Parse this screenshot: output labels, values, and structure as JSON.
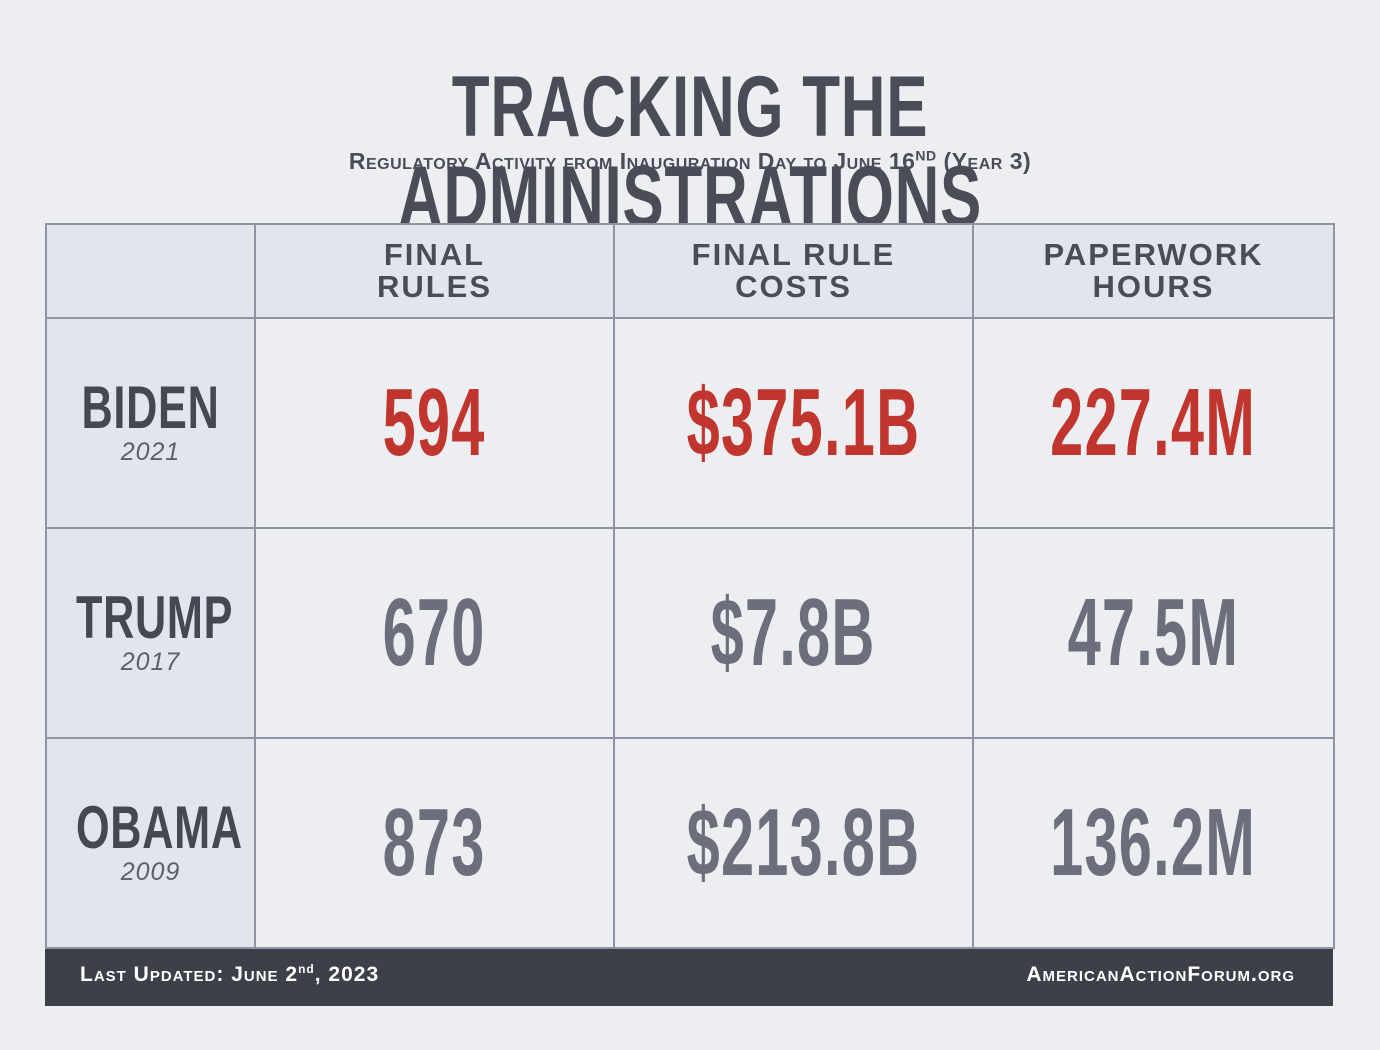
{
  "header": {
    "title": "TRACKING THE ADMINISTRATIONS",
    "subtitle_main": "Regulatory Activity from Inauguration Day to June 16",
    "subtitle_sup": "ND",
    "subtitle_tail": " (Year 3)"
  },
  "table": {
    "columns": [
      "FINAL RULES",
      "FINAL RULE COSTS",
      "PAPERWORK HOURS"
    ],
    "rows": [
      {
        "name": "BIDEN",
        "year": "2021",
        "values": [
          "594",
          "$375.1B",
          "227.4M"
        ]
      },
      {
        "name": "TRUMP",
        "year": "2017",
        "values": [
          "670",
          "$7.8B",
          "47.5M"
        ]
      },
      {
        "name": "OBAMA",
        "year": "2009",
        "values": [
          "873",
          "$213.8B",
          "136.2M"
        ]
      }
    ]
  },
  "chart_data": {
    "type": "table",
    "title": "TRACKING THE ADMINISTRATIONS",
    "subtitle": "Regulatory Activity from Inauguration Day to June 16ND (Year 3)",
    "columns": [
      "FINAL RULES",
      "FINAL RULE COSTS",
      "PAPERWORK HOURS"
    ],
    "rows": [
      "BIDEN 2021",
      "TRUMP 2017",
      "OBAMA 2009"
    ],
    "cells": [
      [
        "594",
        "$375.1B",
        "227.4M"
      ],
      [
        "670",
        "$7.8B",
        "47.5M"
      ],
      [
        "873",
        "$213.8B",
        "136.2M"
      ]
    ]
  },
  "footer": {
    "updated_prefix": "Last Updated: June 2",
    "updated_sup": "nd",
    "updated_suffix": ", 2023",
    "site": "AmericanActionForum.org"
  },
  "colors": {
    "highlight": "#c0362f",
    "value": "#6b6f7c",
    "footer_bg": "#3d4048"
  }
}
